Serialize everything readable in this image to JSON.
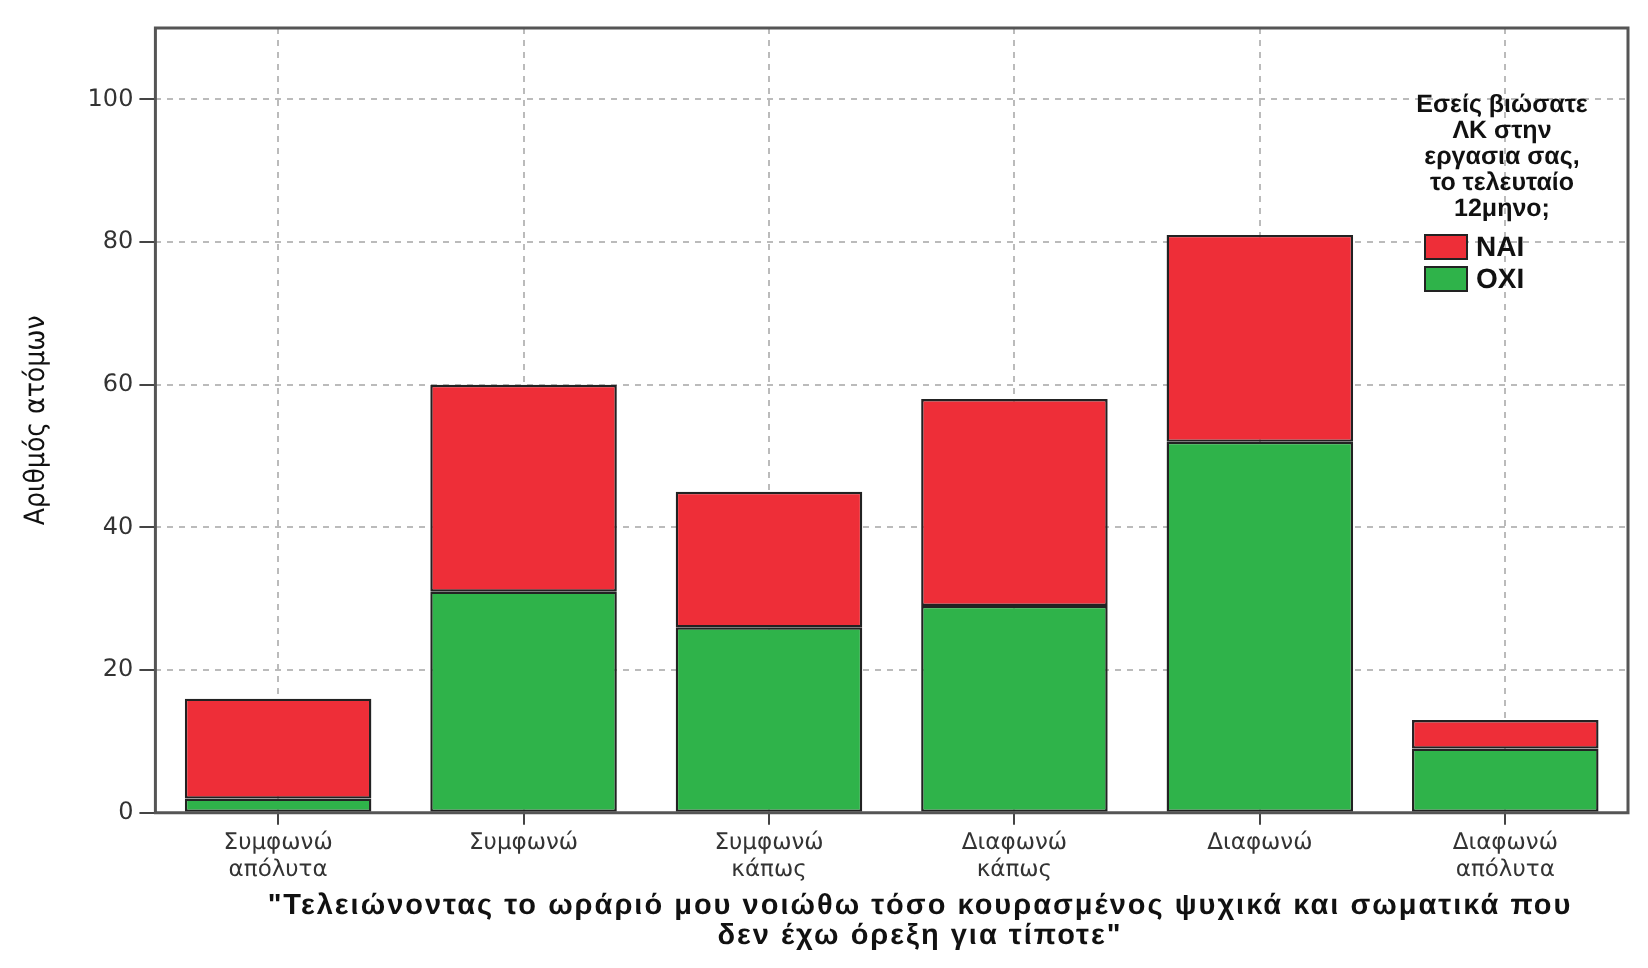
{
  "chart_data": {
    "type": "bar",
    "stacked": true,
    "categories": [
      "Συμφωνώ απόλυτα",
      "Συμφωνώ",
      "Συμφωνώ κάπως",
      "Διαφωνώ κάπως",
      "Διαφωνώ",
      "Διαφωνώ απόλυτα"
    ],
    "series": [
      {
        "name": "ΟΧΙ",
        "color": "#2fb34a",
        "values": [
          2,
          31,
          26,
          29,
          52,
          9
        ]
      },
      {
        "name": "ΝΑΙ",
        "color": "#ee2e38",
        "values": [
          14,
          29,
          19,
          29,
          29,
          4
        ]
      }
    ],
    "xlabel": "\"Τελειώνοντας το ωράριό μου νοιώθω τόσο κουρασμένος ψυχικά και σωματικά που δεν έχω όρεξη για τίποτε\"",
    "ylabel": "Αριθμός ατόμων",
    "legend_title": "Εσείς βιώσατε ΛΚ στην εργασια σας, το τελευταίο 12μηνο;",
    "ylim": [
      0,
      110
    ],
    "yticks": [
      0,
      20,
      40,
      60,
      80,
      100
    ],
    "grid": true,
    "legend": "top right"
  }
}
